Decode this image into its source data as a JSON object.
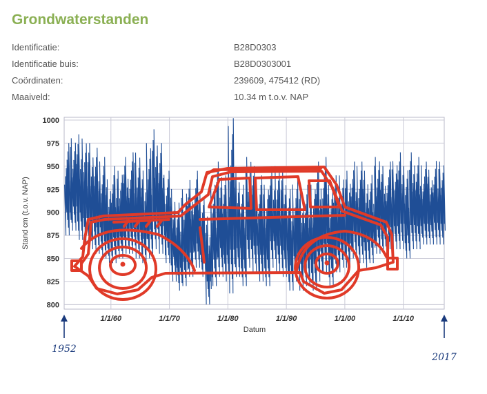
{
  "page": {
    "title": "Grondwaterstanden",
    "info": [
      {
        "label": "Identificatie:",
        "value": "B28D0303"
      },
      {
        "label": "Identificatie buis:",
        "value": "B28D0303001"
      },
      {
        "label": "Coördinaten:",
        "value": "239609, 475412 (RD)"
      },
      {
        "label": "Maaiveld:",
        "value": "10.34 m t.o.v. NAP"
      }
    ]
  },
  "chart_data": {
    "type": "line",
    "xlabel": "Datum",
    "ylabel": "Stand cm (t.o.v. NAP)",
    "ylim": [
      795,
      1003
    ],
    "xlim": [
      "1952-01-01",
      "2017-01-01"
    ],
    "y_ticks": [
      1000,
      975,
      950,
      925,
      900,
      875,
      850,
      825,
      800
    ],
    "x_ticks": [
      "1/1/60",
      "1/1/70",
      "1/1/80",
      "1/1/90",
      "1/1/00",
      "1/1/10"
    ],
    "grid": true,
    "series_color": "#1f4e96",
    "series": [
      {
        "x": [
          "1952-07",
          "1953-07",
          "1954-07",
          "1955-07",
          "1956-07",
          "1957-07",
          "1958-07",
          "1959-07",
          "1960-07",
          "1961-07",
          "1962-07",
          "1963-07",
          "1964-07",
          "1965-07",
          "1966-07",
          "1967-07",
          "1968-07",
          "1969-07",
          "1970-07",
          "1971-07",
          "1972-07",
          "1973-07",
          "1974-07",
          "1975-07",
          "1976-07",
          "1977-07",
          "1978-07",
          "1979-07",
          "1980-07",
          "1981-07",
          "1982-07",
          "1983-07",
          "1984-07",
          "1985-07",
          "1986-07",
          "1987-07",
          "1988-07",
          "1989-07",
          "1990-07",
          "1991-07",
          "1992-07",
          "1993-07",
          "1994-07",
          "1995-07",
          "1996-07",
          "1997-07",
          "1998-07",
          "1999-07",
          "2000-07",
          "2001-07",
          "2002-07",
          "2003-07",
          "2004-07",
          "2005-07",
          "2006-07",
          "2007-07",
          "2008-07",
          "2009-07",
          "2010-07",
          "2011-07",
          "2012-07",
          "2013-07",
          "2014-07",
          "2015-07",
          "2016-07"
        ],
        "max": [
          975,
          985,
          990,
          980,
          975,
          970,
          960,
          940,
          955,
          945,
          960,
          965,
          970,
          950,
          975,
          990,
          975,
          945,
          930,
          915,
          925,
          935,
          945,
          925,
          900,
          935,
          955,
          940,
          1002,
          955,
          935,
          960,
          950,
          940,
          935,
          955,
          950,
          945,
          925,
          935,
          930,
          935,
          930,
          955,
          960,
          935,
          945,
          940,
          945,
          955,
          955,
          950,
          945,
          960,
          950,
          955,
          960,
          970,
          950,
          965,
          960,
          955,
          950,
          960,
          955
        ],
        "min": [
          875,
          880,
          870,
          865,
          860,
          855,
          850,
          845,
          845,
          850,
          855,
          855,
          850,
          845,
          850,
          860,
          855,
          845,
          825,
          815,
          820,
          830,
          840,
          830,
          800,
          820,
          830,
          825,
          812,
          830,
          820,
          840,
          835,
          825,
          820,
          840,
          835,
          830,
          815,
          825,
          815,
          820,
          815,
          825,
          835,
          820,
          835,
          840,
          840,
          850,
          845,
          840,
          845,
          855,
          855,
          860,
          860,
          860,
          850,
          860,
          860,
          865,
          865,
          865,
          865
        ]
      }
    ],
    "annotations": [
      {
        "text": "1952",
        "year": 1952
      },
      {
        "text": "2017",
        "year": 2017
      }
    ],
    "drawing": "car"
  }
}
